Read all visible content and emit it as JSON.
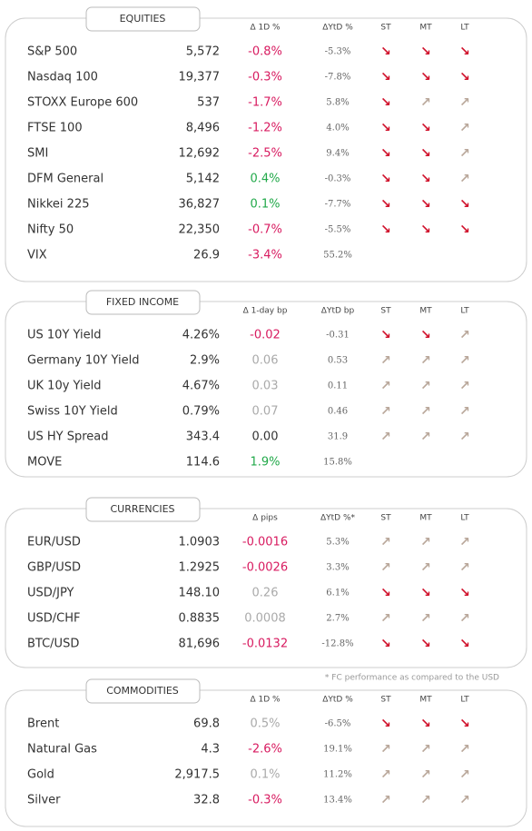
{
  "arrow_colors": {
    "↘": "#d0112b",
    "↗": "#b9a79a"
  },
  "sections": [
    {
      "title": "EQUITIES",
      "columns": [
        "Δ 1D %",
        "ΔYtD %",
        "ST",
        "MT",
        "LT"
      ],
      "rows": [
        {
          "cells": [
            "S&P 500",
            "5,572",
            "-0.8%",
            "-5.3%",
            "↘",
            "↘",
            "↘"
          ],
          "color": "#d81b60"
        },
        {
          "cells": [
            "Nasdaq 100",
            "19,377",
            "-0.3%",
            "-7.8%",
            "↘",
            "↘",
            "↘"
          ],
          "color": "#d81b60"
        },
        {
          "cells": [
            "STOXX Europe 600",
            "537",
            "-1.7%",
            "5.8%",
            "↘",
            "↗",
            "↗"
          ],
          "color": "#d81b60"
        },
        {
          "cells": [
            "FTSE 100",
            "8,496",
            "-1.2%",
            "4.0%",
            "↘",
            "↘",
            "↗"
          ],
          "color": "#d81b60"
        },
        {
          "cells": [
            "SMI",
            "12,692",
            "-2.5%",
            "9.4%",
            "↘",
            "↘",
            "↗"
          ],
          "color": "#d81b60"
        },
        {
          "cells": [
            "DFM General",
            "5,142",
            "0.4%",
            "-0.3%",
            "↘",
            "↘",
            "↗"
          ],
          "color": "#22a94a"
        },
        {
          "cells": [
            "Nikkei 225",
            "36,827",
            "0.1%",
            "-7.7%",
            "↘",
            "↘",
            "↘"
          ],
          "color": "#22a94a"
        },
        {
          "cells": [
            "Nifty 50",
            "22,350",
            "-0.7%",
            "-5.5%",
            "↘",
            "↘",
            "↘"
          ],
          "color": "#d81b60"
        },
        {
          "cells": [
            "VIX",
            "26.9",
            "-3.4%",
            "55.2%"
          ],
          "color": "#d81b60"
        }
      ]
    },
    {
      "title": "FIXED INCOME",
      "columns": [
        "Δ 1-day bp",
        "ΔYtD bp",
        "ST",
        "MT",
        "LT"
      ],
      "rows": [
        {
          "cells": [
            "US 10Y Yield",
            "4.26%",
            "-0.02",
            "-0.31",
            "↘",
            "↘",
            "↗"
          ],
          "color": "#d81b60"
        },
        {
          "cells": [
            "Germany 10Y Yield",
            "2.9%",
            "0.06",
            "0.53",
            "↗",
            "↗",
            "↗"
          ],
          "color": "#aaaaaa"
        },
        {
          "cells": [
            "UK 10y Yield",
            "4.67%",
            "0.03",
            "0.11",
            "↗",
            "↗",
            "↗"
          ],
          "color": "#aaaaaa"
        },
        {
          "cells": [
            "Swiss 10Y Yield",
            "0.79%",
            "0.07",
            "0.46",
            "↗",
            "↗",
            "↗"
          ],
          "color": "#aaaaaa"
        },
        {
          "cells": [
            "US HY Spread",
            "343.4",
            "0.00",
            "31.9",
            "↗",
            "↗",
            "↗"
          ],
          "color": "#333333"
        },
        {
          "cells": [
            "MOVE",
            "114.6",
            "1.9%",
            "15.8%"
          ],
          "color": "#22a94a"
        }
      ]
    },
    {
      "title": "CURRENCIES",
      "columns": [
        "Δ pips",
        "ΔYtD %*",
        "ST",
        "MT",
        "LT"
      ],
      "footnote": "* FC performance as compared to the USD",
      "rows": [
        {
          "cells": [
            "EUR/USD",
            "1.0903",
            "-0.0016",
            "5.3%",
            "↗",
            "↗",
            "↗"
          ],
          "color": "#d81b60"
        },
        {
          "cells": [
            "GBP/USD",
            "1.2925",
            "-0.0026",
            "3.3%",
            "↗",
            "↗",
            "↗"
          ],
          "color": "#d81b60"
        },
        {
          "cells": [
            "USD/JPY",
            "148.10",
            "0.26",
            "6.1%",
            "↘",
            "↘",
            "↘"
          ],
          "color": "#aaaaaa"
        },
        {
          "cells": [
            "USD/CHF",
            "0.8835",
            "0.0008",
            "2.7%",
            "↗",
            "↗",
            "↗"
          ],
          "color": "#aaaaaa"
        },
        {
          "cells": [
            "BTC/USD",
            "81,696",
            "-0.0132",
            "-12.8%",
            "↘",
            "↘",
            "↘"
          ],
          "color": "#d81b60"
        }
      ]
    },
    {
      "title": "COMMODITIES",
      "columns": [
        "Δ 1D %",
        "ΔYtD %",
        "ST",
        "MT",
        "LT"
      ],
      "rows": [
        {
          "cells": [
            "Brent",
            "69.8",
            "0.5%",
            "-6.5%",
            "↘",
            "↘",
            "↘"
          ],
          "color": "#aaaaaa"
        },
        {
          "cells": [
            "Natural Gas",
            "4.3",
            "-2.6%",
            "19.1%",
            "↗",
            "↗",
            "↗"
          ],
          "color": "#d81b60"
        },
        {
          "cells": [
            "Gold",
            "2,917.5",
            "0.1%",
            "11.2%",
            "↗",
            "↗",
            "↗"
          ],
          "color": "#aaaaaa"
        },
        {
          "cells": [
            "Silver",
            "32.8",
            "-0.3%",
            "13.4%",
            "↗",
            "↗",
            "↗"
          ],
          "color": "#d81b60"
        }
      ]
    }
  ]
}
